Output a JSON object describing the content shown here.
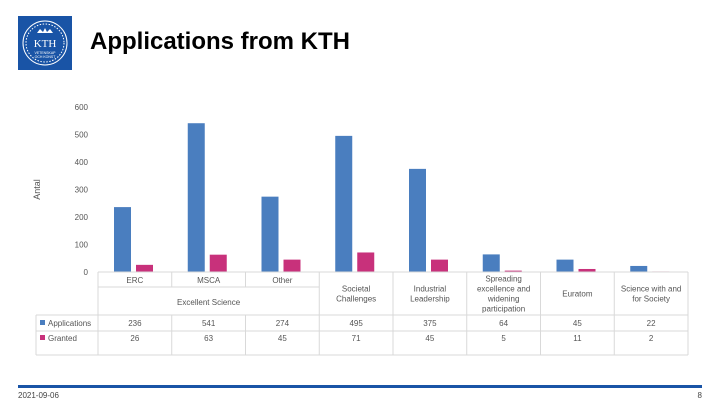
{
  "slide": {
    "title": "Applications from KTH",
    "date": "2021-09-06",
    "page_number": "8",
    "logo": {
      "icon": "kth-crown-logo",
      "text": "KTH",
      "subtext": [
        "VETENSKAP",
        "OCH KONST"
      ]
    }
  },
  "colors": {
    "applications": "#4a7ebf",
    "granted": "#c8317b",
    "brand": "#1954a6",
    "grid": "#d9d9d9",
    "axis_text": "#777777"
  },
  "chart_data": {
    "type": "bar",
    "ylabel": "Antal",
    "ylim": [
      0,
      600
    ],
    "yticks": [
      0,
      100,
      200,
      300,
      400,
      500,
      600
    ],
    "grid": true,
    "legend": "table-left",
    "categories": [
      {
        "label": [
          "ERC"
        ],
        "group": "Excellent Science"
      },
      {
        "label": [
          "MSCA"
        ],
        "group": "Excellent Science"
      },
      {
        "label": [
          "Other"
        ],
        "group": "Excellent Science"
      },
      {
        "label": [
          "Societal",
          "Challenges"
        ],
        "group": ""
      },
      {
        "label": [
          "Industrial",
          "Leadership"
        ],
        "group": ""
      },
      {
        "label": [
          "Spreading",
          "excellence and",
          "widening",
          "participation"
        ],
        "group": ""
      },
      {
        "label": [
          "Euratom"
        ],
        "group": ""
      },
      {
        "label": [
          "Science with and",
          "for Society"
        ],
        "group": ""
      }
    ],
    "group_label": "Excellent Science",
    "series": [
      {
        "name": "Applications",
        "values": [
          236,
          541,
          274,
          495,
          375,
          64,
          45,
          22
        ]
      },
      {
        "name": "Granted",
        "values": [
          26,
          63,
          45,
          71,
          45,
          5,
          11,
          2
        ]
      }
    ]
  }
}
